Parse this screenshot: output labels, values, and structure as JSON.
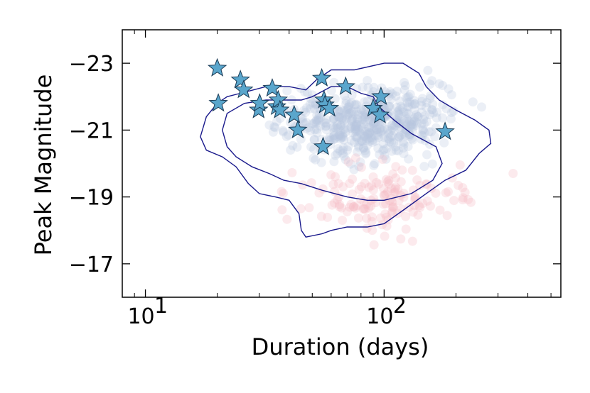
{
  "chart_data": {
    "type": "scatter",
    "title": "",
    "xlabel": "Duration (days)",
    "ylabel": "Peak Magnitude",
    "xscale": "log",
    "xlim": [
      8.0,
      550
    ],
    "ylim": [
      -16.0,
      -24.0
    ],
    "y_inverted": true,
    "grid": false,
    "x_ticks": [
      {
        "value": 10,
        "base": "10",
        "exp": "1"
      },
      {
        "value": 100,
        "base": "10",
        "exp": "2"
      }
    ],
    "y_ticks": [
      {
        "value": -23,
        "label": "−23"
      },
      {
        "value": -21,
        "label": "−21"
      },
      {
        "value": -19,
        "label": "−19"
      },
      {
        "value": -17,
        "label": "−17"
      }
    ],
    "colors": {
      "blue_cloud": "#b8c6de",
      "red_cloud": "#f4b8c2",
      "contour": "#1a1a8c",
      "star_fill": "#5aa6cc",
      "star_edge": "#1b3b55"
    },
    "contours": [
      {
        "name": "outer",
        "points": [
          [
            20,
            -21.8
          ],
          [
            18,
            -21.4
          ],
          [
            17,
            -20.8
          ],
          [
            18,
            -20.4
          ],
          [
            21,
            -20.2
          ],
          [
            24,
            -19.9
          ],
          [
            27,
            -19.4
          ],
          [
            30,
            -19.1
          ],
          [
            35,
            -19.0
          ],
          [
            40,
            -18.9
          ],
          [
            44,
            -18.5
          ],
          [
            45,
            -18.0
          ],
          [
            47,
            -17.8
          ],
          [
            55,
            -17.9
          ],
          [
            60,
            -18.0
          ],
          [
            70,
            -18.1
          ],
          [
            85,
            -18.1
          ],
          [
            100,
            -18.2
          ],
          [
            120,
            -18.6
          ],
          [
            150,
            -19.1
          ],
          [
            180,
            -19.5
          ],
          [
            220,
            -19.8
          ],
          [
            250,
            -20.3
          ],
          [
            280,
            -20.6
          ],
          [
            275,
            -21.0
          ],
          [
            240,
            -21.3
          ],
          [
            200,
            -21.6
          ],
          [
            170,
            -21.9
          ],
          [
            150,
            -22.3
          ],
          [
            140,
            -22.7
          ],
          [
            120,
            -23.0
          ],
          [
            100,
            -23.0
          ],
          [
            75,
            -22.8
          ],
          [
            60,
            -22.8
          ],
          [
            52,
            -22.5
          ],
          [
            47,
            -22.2
          ],
          [
            40,
            -22.3
          ],
          [
            32,
            -22.3
          ],
          [
            25,
            -22.1
          ],
          [
            22,
            -22.0
          ]
        ]
      },
      {
        "name": "inner",
        "points": [
          [
            22,
            -21.5
          ],
          [
            21,
            -21.0
          ],
          [
            22,
            -20.5
          ],
          [
            24,
            -20.2
          ],
          [
            28,
            -19.9
          ],
          [
            33,
            -19.7
          ],
          [
            38,
            -19.5
          ],
          [
            45,
            -19.4
          ],
          [
            55,
            -19.2
          ],
          [
            70,
            -19.0
          ],
          [
            85,
            -18.9
          ],
          [
            100,
            -18.9
          ],
          [
            130,
            -19.1
          ],
          [
            160,
            -19.5
          ],
          [
            175,
            -20.0
          ],
          [
            165,
            -20.5
          ],
          [
            130,
            -20.9
          ],
          [
            110,
            -21.3
          ],
          [
            95,
            -21.7
          ],
          [
            90,
            -22.0
          ],
          [
            80,
            -22.1
          ],
          [
            70,
            -22.3
          ],
          [
            60,
            -22.3
          ],
          [
            50,
            -22.0
          ],
          [
            45,
            -21.9
          ],
          [
            38,
            -21.9
          ],
          [
            32,
            -21.9
          ],
          [
            26,
            -21.8
          ]
        ]
      }
    ],
    "series": [
      {
        "name": "sample",
        "marker": "star",
        "points": [
          [
            20.0,
            -22.85
          ],
          [
            20.2,
            -21.8
          ],
          [
            25.0,
            -22.5
          ],
          [
            25.8,
            -22.2
          ],
          [
            29.8,
            -21.6
          ],
          [
            30.1,
            -21.8
          ],
          [
            34.0,
            -22.25
          ],
          [
            35.5,
            -21.7
          ],
          [
            36.0,
            -21.9
          ],
          [
            36.6,
            -21.6
          ],
          [
            42.0,
            -21.45
          ],
          [
            43.5,
            -21.0
          ],
          [
            54.8,
            -22.55
          ],
          [
            55.5,
            -20.5
          ],
          [
            56.0,
            -21.9
          ],
          [
            56.5,
            -21.75
          ],
          [
            59.0,
            -21.65
          ],
          [
            69.0,
            -22.3
          ],
          [
            90.0,
            -21.65
          ],
          [
            96.0,
            -21.45
          ],
          [
            97.0,
            -22.0
          ],
          [
            180.0,
            -20.95
          ]
        ]
      }
    ]
  }
}
